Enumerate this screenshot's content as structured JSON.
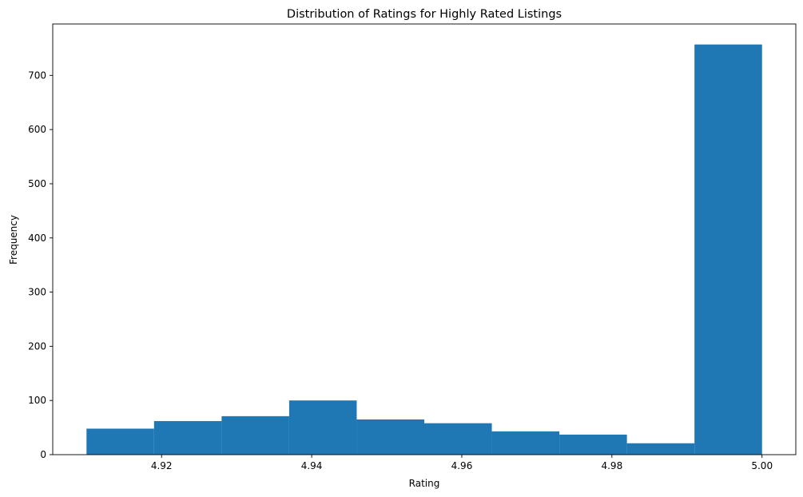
{
  "chart_data": {
    "type": "bar",
    "title": "Distribution of Ratings for Highly Rated Listings",
    "xlabel": "Rating",
    "ylabel": "Frequency",
    "bin_edges": [
      4.91,
      4.919,
      4.928,
      4.937,
      4.946,
      4.955,
      4.964,
      4.973,
      4.982,
      4.991,
      5.0
    ],
    "values": [
      48,
      62,
      71,
      100,
      65,
      58,
      43,
      37,
      21,
      757
    ],
    "xlim": [
      4.9055,
      5.0045
    ],
    "ylim": [
      0,
      794.85
    ],
    "xticks": [
      4.92,
      4.94,
      4.96,
      4.98,
      5.0
    ],
    "xtick_labels": [
      "4.92",
      "4.94",
      "4.96",
      "4.98",
      "5.00"
    ],
    "yticks": [
      0,
      100,
      200,
      300,
      400,
      500,
      600,
      700
    ],
    "ytick_labels": [
      "0",
      "100",
      "200",
      "300",
      "400",
      "500",
      "600",
      "700"
    ],
    "bar_color": "#1f77b4",
    "grid": false,
    "legend": "none"
  }
}
